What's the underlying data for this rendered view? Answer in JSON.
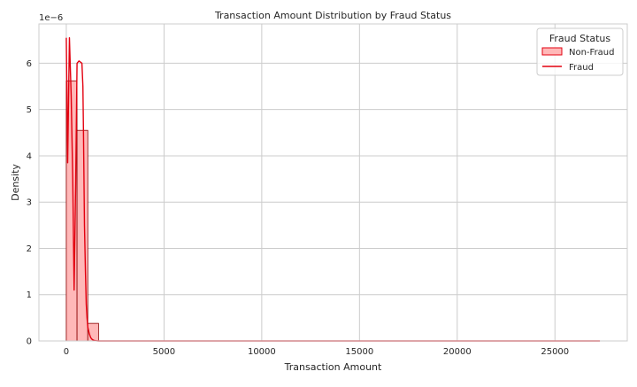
{
  "chart_data": {
    "type": "area",
    "title": "Transaction Amount Distribution by Fraud Status",
    "xlabel": "Transaction Amount",
    "ylabel": "Density",
    "y_scale_label": "1e−6",
    "xlim": [
      -1400,
      28700
    ],
    "ylim": [
      0,
      6.85
    ],
    "x_ticks": [
      0,
      5000,
      10000,
      15000,
      20000,
      25000
    ],
    "x_tick_labels": [
      "0",
      "5000",
      "10000",
      "15000",
      "20000",
      "25000"
    ],
    "y_ticks": [
      0,
      1,
      2,
      3,
      4,
      5,
      6
    ],
    "y_tick_labels": [
      "0",
      "1",
      "2",
      "3",
      "4",
      "5",
      "6"
    ],
    "grid": true,
    "legend": {
      "title": "Fraud Status",
      "placement": "top-right",
      "entries": [
        "Non-Fraud",
        "Fraud"
      ]
    },
    "colors": {
      "non_fraud_fill": "#ffb8b8",
      "non_fraud_edge": "#8b0000",
      "fraud_line": "#e3000f",
      "grid": "#cccccc",
      "spine": "#cccccc"
    },
    "series": [
      {
        "name": "Non-Fraud",
        "kind": "histogram",
        "bin_edges": [
          0,
          550,
          1100,
          1650
        ],
        "values": [
          5.62,
          4.55,
          0.38
        ]
      },
      {
        "name": "Fraud",
        "kind": "density",
        "x": [
          0,
          70,
          160,
          250,
          330,
          400,
          480,
          550,
          650,
          800,
          850,
          880,
          930,
          980,
          1020,
          1060,
          1100,
          1180,
          1250,
          1330,
          1420,
          1500,
          1650,
          2500,
          5000,
          10000,
          15000,
          20000,
          25000,
          27300
        ],
        "y": [
          6.55,
          3.85,
          6.55,
          5.3,
          3.5,
          1.1,
          3.4,
          6.0,
          6.05,
          6.0,
          5.5,
          4.5,
          2.5,
          1.5,
          0.8,
          0.5,
          0.3,
          0.15,
          0.07,
          0.03,
          0.01,
          0.005,
          0.0,
          0.0,
          0.0,
          0.0,
          0.0,
          0.0,
          0.0,
          0.0
        ]
      }
    ]
  }
}
